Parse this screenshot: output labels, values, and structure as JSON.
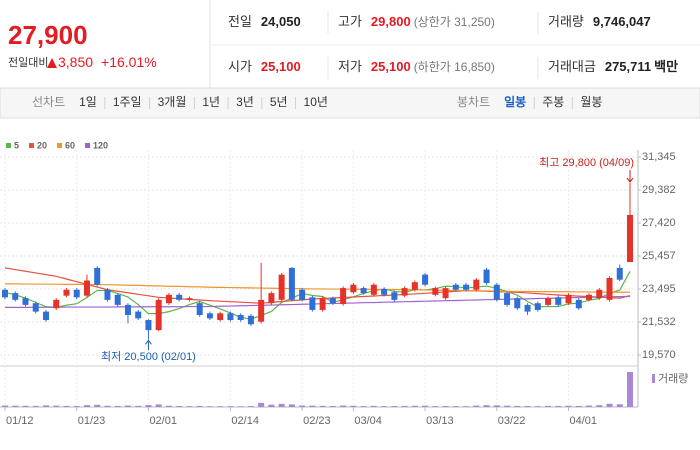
{
  "quote": {
    "price": "27,900",
    "change_label": "전일대비",
    "change": "3,850",
    "change_pct": "+16.01%"
  },
  "stats": [
    {
      "label": "전일",
      "value": "24,050"
    },
    {
      "label": "고가",
      "value": "29,800",
      "extra": "(상한가 31,250)",
      "color": "#e31b23"
    },
    {
      "label": "거래량",
      "value": "9,746,047"
    },
    {
      "label": "시가",
      "value": "25,100",
      "color": "#e31b23"
    },
    {
      "label": "저가",
      "value": "25,100",
      "extra": "(하한가 16,850)",
      "color": "#e31b23"
    },
    {
      "label": "거래대금",
      "value": "275,711",
      "unit": "백만"
    }
  ],
  "line_tabs": {
    "label": "선차트",
    "items": [
      "1일",
      "1주일",
      "3개월",
      "1년",
      "3년",
      "5년",
      "10년"
    ]
  },
  "candle_tabs": {
    "label": "봉차트",
    "items": [
      "일봉",
      "주봉",
      "월봉"
    ],
    "selected": 0
  },
  "chart_data": {
    "type": "candlestick",
    "categories": [
      "01/12",
      null,
      null,
      null,
      null,
      null,
      null,
      "01/23",
      null,
      null,
      null,
      null,
      null,
      null,
      "02/01",
      null,
      null,
      null,
      null,
      null,
      null,
      null,
      "02/14",
      null,
      null,
      null,
      null,
      null,
      null,
      "02/23",
      null,
      null,
      null,
      null,
      "03/04",
      null,
      null,
      null,
      null,
      null,
      null,
      "03/13",
      null,
      null,
      null,
      null,
      null,
      null,
      "03/22",
      null,
      null,
      null,
      null,
      null,
      null,
      "04/01",
      null,
      null,
      null,
      null,
      null,
      null
    ],
    "open": [
      23450,
      23250,
      22950,
      22650,
      22150,
      22350,
      23100,
      23450,
      23100,
      24750,
      23450,
      23150,
      22550,
      22150,
      21650,
      21050,
      22650,
      23150,
      22850,
      22650,
      22050,
      21650,
      22050,
      21950,
      21900,
      21550,
      22650,
      22850,
      24750,
      23450,
      23000,
      22250,
      22950,
      22600,
      23300,
      23550,
      23150,
      23500,
      23300,
      23100,
      23450,
      24350,
      23150,
      22950,
      23750,
      23750,
      23450,
      24650,
      23750,
      23250,
      22950,
      22550,
      22650,
      22550,
      23000,
      22650,
      22850,
      22850,
      22950,
      22850,
      24750,
      25100
    ],
    "high": [
      23550,
      23350,
      23050,
      22750,
      22250,
      22950,
      23550,
      23550,
      24350,
      24850,
      23550,
      23250,
      22650,
      22250,
      21700,
      22950,
      23250,
      23250,
      23050,
      22750,
      22150,
      22150,
      22150,
      22050,
      22000,
      25050,
      23350,
      24450,
      24800,
      23550,
      23100,
      23050,
      23050,
      23650,
      23850,
      23650,
      23850,
      23600,
      23400,
      23650,
      24000,
      24450,
      23650,
      23650,
      23850,
      23850,
      24150,
      24750,
      23850,
      23350,
      23050,
      22650,
      22750,
      23050,
      23100,
      23250,
      22950,
      23250,
      23550,
      24250,
      24950,
      29800
    ],
    "low": [
      22900,
      22750,
      22450,
      22050,
      21550,
      22250,
      23000,
      22900,
      23000,
      23650,
      22750,
      22450,
      21450,
      21650,
      20500,
      21000,
      22550,
      22750,
      22750,
      21850,
      21650,
      21550,
      21550,
      21550,
      21300,
      21450,
      22550,
      22750,
      22750,
      22750,
      22150,
      22150,
      22550,
      22500,
      23200,
      23150,
      23050,
      23050,
      22750,
      23000,
      23350,
      23650,
      23050,
      22850,
      23350,
      23350,
      23350,
      23750,
      22750,
      22450,
      22250,
      21950,
      22150,
      22450,
      22450,
      22550,
      22250,
      22750,
      22850,
      22750,
      23950,
      25100
    ],
    "close": [
      23000,
      22850,
      22550,
      22150,
      21650,
      22850,
      23450,
      23000,
      24000,
      23750,
      22850,
      22550,
      21950,
      21750,
      21050,
      22850,
      23150,
      22850,
      22950,
      21950,
      21750,
      22050,
      21650,
      21650,
      21400,
      22850,
      23250,
      24350,
      22850,
      22850,
      22250,
      22950,
      22650,
      23550,
      23750,
      23250,
      23750,
      23150,
      22850,
      23550,
      23900,
      23750,
      23550,
      23550,
      23450,
      23450,
      24050,
      23850,
      22850,
      22550,
      22350,
      22150,
      22250,
      22950,
      22550,
      23150,
      22350,
      23150,
      23450,
      24150,
      24050,
      27900
    ],
    "up_color": "#e5332a",
    "down_color": "#2f6fd6",
    "ma_series": [
      {
        "name": "5",
        "color": "#5cb54a",
        "values": [
          23300,
          23150,
          22950,
          22700,
          22440,
          22410,
          22530,
          22620,
          22990,
          23410,
          23410,
          23230,
          23020,
          22570,
          22030,
          22030,
          22150,
          22330,
          22570,
          22750,
          22530,
          22310,
          22070,
          21810,
          21700,
          21920,
          22160,
          22700,
          22940,
          23230,
          23110,
          23050,
          22710,
          22850,
          23030,
          23230,
          23390,
          23490,
          23350,
          23310,
          23440,
          23440,
          23520,
          23660,
          23640,
          23550,
          23610,
          23670,
          23530,
          23350,
          23130,
          22750,
          22430,
          22450,
          22450,
          22610,
          22650,
          22830,
          22930,
          23250,
          23430,
          24540
        ]
      },
      {
        "name": "20",
        "color": "#e8503f",
        "values": [
          24750,
          24650,
          24550,
          24450,
          24350,
          24250,
          24090,
          23930,
          23770,
          23610,
          23450,
          23360,
          23270,
          23180,
          23090,
          23000,
          22960,
          22920,
          22880,
          22840,
          22800,
          22770,
          22740,
          22710,
          22680,
          22650,
          22700,
          22750,
          22800,
          22850,
          22900,
          22930,
          22960,
          22990,
          23020,
          23050,
          23080,
          23110,
          23140,
          23170,
          23200,
          23240,
          23280,
          23320,
          23360,
          23400,
          23380,
          23360,
          23340,
          23320,
          23300,
          23260,
          23220,
          23180,
          23140,
          23100,
          23070,
          23040,
          23010,
          22980,
          22950,
          23100
        ]
      },
      {
        "name": "60",
        "color": "#f0952e",
        "values": [
          23800,
          23800,
          23790,
          23790,
          23780,
          23780,
          23770,
          23770,
          23760,
          23760,
          23750,
          23740,
          23720,
          23710,
          23690,
          23680,
          23660,
          23650,
          23630,
          23620,
          23600,
          23590,
          23580,
          23570,
          23560,
          23550,
          23540,
          23530,
          23520,
          23510,
          23500,
          23500,
          23490,
          23490,
          23480,
          23480,
          23470,
          23470,
          23460,
          23460,
          23450,
          23440,
          23430,
          23420,
          23410,
          23400,
          23390,
          23380,
          23370,
          23360,
          23350,
          23350,
          23340,
          23340,
          23330,
          23330,
          23320,
          23320,
          23310,
          23310,
          23300,
          23300
        ]
      },
      {
        "name": "120",
        "color": "#a062d0",
        "values": [
          22400,
          22400,
          22400,
          22410,
          22410,
          22410,
          22420,
          22420,
          22420,
          22420,
          22420,
          22430,
          22430,
          22430,
          22440,
          22440,
          22440,
          22440,
          22450,
          22450,
          22450,
          22470,
          22480,
          22500,
          22510,
          22530,
          22540,
          22560,
          22570,
          22590,
          22600,
          22620,
          22630,
          22650,
          22660,
          22680,
          22690,
          22710,
          22720,
          22740,
          22750,
          22770,
          22780,
          22800,
          22810,
          22830,
          22840,
          22860,
          22870,
          22890,
          22900,
          22910,
          22930,
          22940,
          22960,
          22970,
          22990,
          23000,
          23020,
          23030,
          23040,
          23050
        ]
      }
    ],
    "volume": [
      420000,
      380000,
      350000,
      310000,
      460000,
      380000,
      300000,
      290000,
      520000,
      610000,
      340000,
      300000,
      410000,
      320000,
      560000,
      720000,
      350000,
      280000,
      250000,
      300000,
      220000,
      240000,
      230000,
      200000,
      260000,
      1150000,
      640000,
      880000,
      720000,
      420000,
      380000,
      330000,
      270000,
      410000,
      360000,
      260000,
      310000,
      240000,
      280000,
      300000,
      350000,
      380000,
      260000,
      290000,
      240000,
      230000,
      400000,
      520000,
      470000,
      380000,
      300000,
      280000,
      240000,
      330000,
      300000,
      350000,
      280000,
      420000,
      510000,
      880000,
      760000,
      9746047
    ],
    "volume_label": "거래량",
    "volume_color": "#a888d6",
    "volume_lim": [
      0,
      9746047
    ],
    "ylim": [
      19570,
      31345
    ],
    "yticks": [
      {
        "value": 19570,
        "label": "19,570"
      },
      {
        "value": 21532,
        "label": "21,532"
      },
      {
        "value": 23495,
        "label": "23,495"
      },
      {
        "value": 25457,
        "label": "25,457"
      },
      {
        "value": 27420,
        "label": "27,420"
      },
      {
        "value": 29382,
        "label": "29,382"
      },
      {
        "value": 31345,
        "label": "31,345"
      }
    ],
    "grid": true,
    "annotations": {
      "high": "최고 29,800 (04/09)",
      "low": "최저 20,500 (02/01)"
    }
  }
}
